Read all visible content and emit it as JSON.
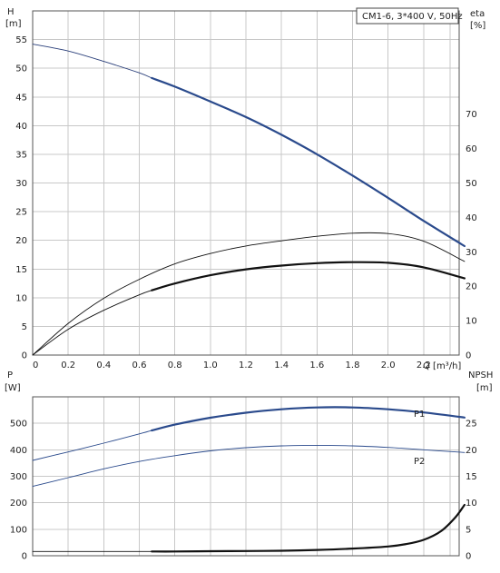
{
  "legend_box": "CM1-6, 3*400 V, 50Hz",
  "chart_data": [
    {
      "type": "line",
      "name": "upper",
      "left_axis": {
        "label_line1": "H",
        "label_line2": "[m]",
        "range": [
          0,
          60
        ],
        "ticks": [
          0,
          5,
          10,
          15,
          20,
          25,
          30,
          35,
          40,
          45,
          50,
          55
        ]
      },
      "right_axis": {
        "label_line1": "eta",
        "label_line2": "[%]",
        "range": [
          0,
          100
        ],
        "ticks": [
          0,
          10,
          20,
          30,
          40,
          50,
          60,
          70
        ]
      },
      "x_axis": {
        "label": "Q [m³/h]",
        "range": [
          0,
          2.4
        ],
        "ticks": [
          0,
          0.2,
          0.4,
          0.6,
          0.8,
          1.0,
          1.2,
          1.4,
          1.6,
          1.8,
          2.0,
          2.2
        ],
        "tick_labels": [
          "0",
          "0.2",
          "0.4",
          "0.6",
          "0.8",
          "1.0",
          "1.2",
          "1.4",
          "1.6",
          "1.8",
          "2.0",
          "2.2"
        ]
      },
      "grid": true,
      "series": [
        {
          "key": "H_extended",
          "axis": "left",
          "style": "thin",
          "color": "#2a3f7a",
          "x": [
            0,
            0.2,
            0.4,
            0.6,
            0.67
          ],
          "y": [
            54.2,
            53.0,
            51.2,
            49.2,
            48.3
          ]
        },
        {
          "key": "H",
          "axis": "left",
          "style": "thick",
          "color": "#2a4a8c",
          "x": [
            0.67,
            0.8,
            1.0,
            1.2,
            1.4,
            1.6,
            1.8,
            2.0,
            2.2,
            2.43
          ],
          "y": [
            48.3,
            46.8,
            44.2,
            41.5,
            38.4,
            35.0,
            31.3,
            27.4,
            23.4,
            19.0
          ]
        },
        {
          "key": "eta_total",
          "axis": "right",
          "style": "thin",
          "color": "#111111",
          "x": [
            0,
            0.2,
            0.4,
            0.6,
            0.8,
            1.0,
            1.2,
            1.4,
            1.6,
            1.8,
            2.0,
            2.2,
            2.43
          ],
          "y": [
            0,
            9.2,
            16.5,
            22.0,
            26.5,
            29.5,
            31.7,
            33.2,
            34.5,
            35.4,
            35.3,
            33.1,
            27.2
          ]
        },
        {
          "key": "eta_hydraulic_extended",
          "axis": "right",
          "style": "thin",
          "color": "#111111",
          "x": [
            0,
            0.2,
            0.4,
            0.6,
            0.67
          ],
          "y": [
            0,
            7.5,
            13.0,
            17.5,
            18.8
          ]
        },
        {
          "key": "eta_hydraulic",
          "axis": "right",
          "style": "thick",
          "color": "#111111",
          "x": [
            0.67,
            0.8,
            1.0,
            1.2,
            1.4,
            1.6,
            1.8,
            2.0,
            2.2,
            2.43
          ],
          "y": [
            18.8,
            20.8,
            23.2,
            24.9,
            26.0,
            26.7,
            27.0,
            26.8,
            25.5,
            22.3
          ]
        }
      ]
    },
    {
      "type": "line",
      "name": "lower",
      "left_axis": {
        "label_line1": "P",
        "label_line2": "[W]",
        "range": [
          0,
          600
        ],
        "ticks": [
          0,
          100,
          200,
          300,
          400,
          500
        ]
      },
      "right_axis": {
        "label_line1": "NPSH",
        "label_line2": "[m]",
        "range": [
          0,
          30
        ],
        "ticks": [
          0,
          5,
          10,
          15,
          20,
          25
        ]
      },
      "x_axis": {
        "range": [
          0,
          2.4
        ],
        "ticks": [
          0,
          0.2,
          0.4,
          0.6,
          0.8,
          1.0,
          1.2,
          1.4,
          1.6,
          1.8,
          2.0,
          2.2
        ]
      },
      "grid": true,
      "series": [
        {
          "key": "P1_extended",
          "axis": "left",
          "style": "thin",
          "color": "#2a4a8c",
          "x": [
            0,
            0.2,
            0.4,
            0.6,
            0.67
          ],
          "y": [
            360,
            392,
            425,
            460,
            473
          ]
        },
        {
          "key": "P1",
          "axis": "left",
          "style": "thick",
          "color": "#2a4a8c",
          "label": "P1",
          "x": [
            0.67,
            0.8,
            1.0,
            1.2,
            1.4,
            1.6,
            1.8,
            2.0,
            2.2,
            2.43
          ],
          "y": [
            473,
            495,
            521,
            540,
            553,
            560,
            560,
            553,
            541,
            522
          ]
        },
        {
          "key": "P2",
          "axis": "left",
          "style": "thin",
          "color": "#2a4a8c",
          "label": "P2",
          "x": [
            0,
            0.2,
            0.4,
            0.6,
            0.8,
            1.0,
            1.2,
            1.4,
            1.6,
            1.8,
            2.0,
            2.2,
            2.43
          ],
          "y": [
            262,
            295,
            328,
            356,
            378,
            396,
            408,
            415,
            417,
            415,
            409,
            400,
            390
          ]
        },
        {
          "key": "NPSH_extended",
          "axis": "right",
          "style": "thin",
          "color": "#111111",
          "x": [
            0,
            0.2,
            0.4,
            0.6,
            0.67
          ],
          "y": [
            0.8,
            0.8,
            0.8,
            0.8,
            0.8
          ]
        },
        {
          "key": "NPSH",
          "axis": "right",
          "style": "thick",
          "color": "#111111",
          "x": [
            0.67,
            0.8,
            1.0,
            1.2,
            1.4,
            1.6,
            1.8,
            2.0,
            2.1,
            2.2,
            2.3,
            2.38,
            2.43
          ],
          "y": [
            0.8,
            0.8,
            0.85,
            0.9,
            0.95,
            1.1,
            1.35,
            1.75,
            2.2,
            3.0,
            4.7,
            7.3,
            9.6
          ]
        }
      ]
    }
  ]
}
